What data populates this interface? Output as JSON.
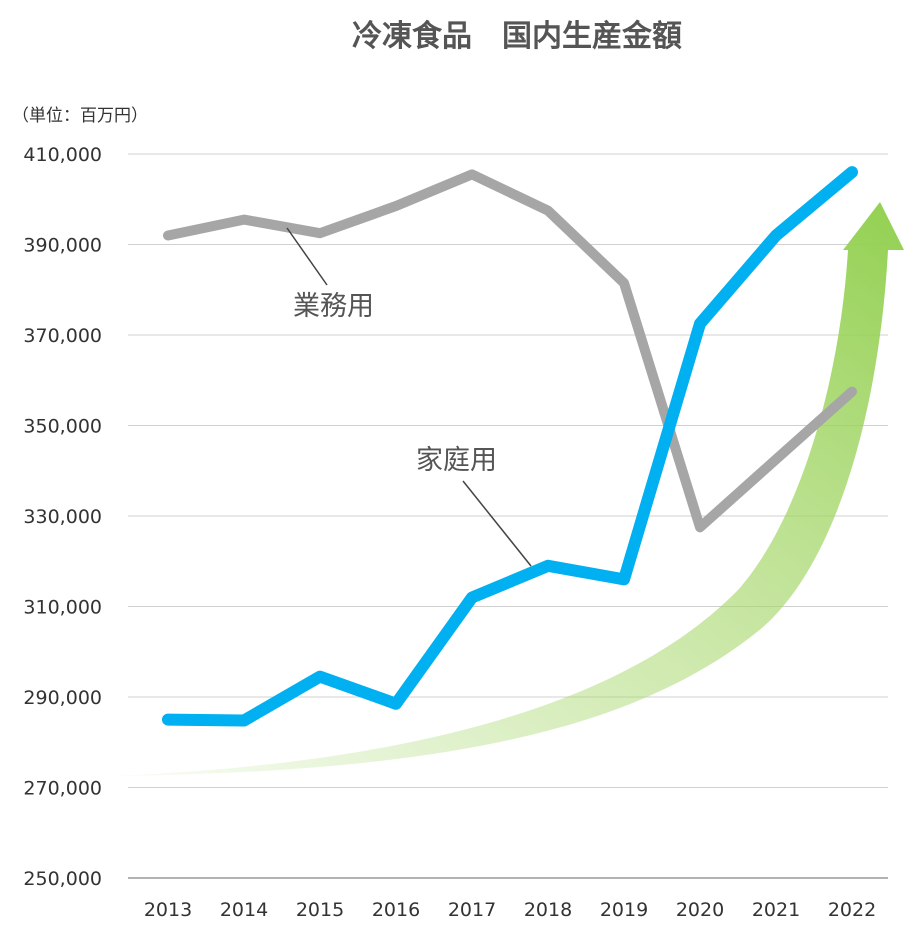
{
  "chart_data": {
    "type": "line",
    "title": "冷凍食品　国内生産金額",
    "unit_label": "（単位：百万円）",
    "x": [
      "2013",
      "2014",
      "2015",
      "2016",
      "2017",
      "2018",
      "2019",
      "2020",
      "2021",
      "2022"
    ],
    "ylim": [
      250000,
      410000
    ],
    "yticks": [
      "250,000",
      "270,000",
      "290,000",
      "310,000",
      "330,000",
      "350,000",
      "370,000",
      "390,000",
      "410,000"
    ],
    "ytick_values": [
      250000,
      270000,
      290000,
      310000,
      330000,
      350000,
      370000,
      390000,
      410000
    ],
    "grid": true,
    "series": [
      {
        "name": "業務用",
        "color": "#a6a6a6",
        "values": [
          392000,
          395500,
          392500,
          398500,
          405500,
          397500,
          381500,
          327500,
          342500,
          357500
        ]
      },
      {
        "name": "家庭用",
        "color": "#00b0f0",
        "values": [
          285000,
          284800,
          294500,
          288500,
          312000,
          319000,
          316000,
          372500,
          392000,
          406000
        ]
      }
    ],
    "trend_arrow_color": "#92d050"
  }
}
